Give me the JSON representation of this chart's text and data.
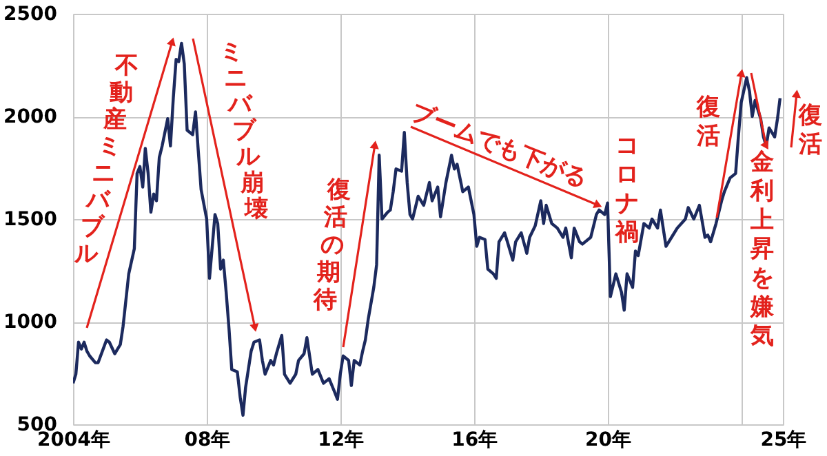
{
  "chart_data": {
    "type": "line",
    "color": "#1c2a5e",
    "grid": true,
    "xlim": [
      "2004-01",
      "2025-04"
    ],
    "xticks": [
      {
        "value": "2004",
        "label": "2004年"
      },
      {
        "value": "2008",
        "label": "08年"
      },
      {
        "value": "2012",
        "label": "12年"
      },
      {
        "value": "2016",
        "label": "16年"
      },
      {
        "value": "2020",
        "label": "20年"
      },
      {
        "value": "2024",
        "label": null
      },
      {
        "value": "2025-04",
        "label": "25年"
      }
    ],
    "ylim": [
      500,
      2500
    ],
    "yticks": [
      500,
      1000,
      1500,
      2000,
      2500
    ],
    "x": [
      "2004-01",
      "2004-02",
      "2004-03",
      "2004-04",
      "2004-05",
      "2004-06",
      "2004-07",
      "2004-09",
      "2004-10",
      "2005-01",
      "2005-02",
      "2005-04",
      "2005-06",
      "2005-07",
      "2005-09",
      "2005-11",
      "2005-12",
      "2006-01",
      "2006-02",
      "2006-03",
      "2006-04",
      "2006-05",
      "2006-06",
      "2006-07",
      "2006-08",
      "2006-09",
      "2006-11",
      "2006-12",
      "2007-01",
      "2007-02",
      "2007-03",
      "2007-04",
      "2007-05",
      "2007-06",
      "2007-08",
      "2007-09",
      "2007-10",
      "2007-11",
      "2008-01",
      "2008-02",
      "2008-04",
      "2008-05",
      "2008-06",
      "2008-07",
      "2008-08",
      "2008-09",
      "2008-10",
      "2008-12",
      "2009-01",
      "2009-02",
      "2009-03",
      "2009-05",
      "2009-06",
      "2009-08",
      "2009-09",
      "2009-10",
      "2009-12",
      "2010-01",
      "2010-02",
      "2010-04",
      "2010-05",
      "2010-07",
      "2010-09",
      "2010-10",
      "2010-12",
      "2011-01",
      "2011-03",
      "2011-05",
      "2011-07",
      "2011-09",
      "2011-11",
      "2011-12",
      "2012-01",
      "2012-02",
      "2012-04",
      "2012-05",
      "2012-06",
      "2012-08",
      "2012-09",
      "2012-10",
      "2012-11",
      "2013-01",
      "2013-02",
      "2013-03",
      "2013-04",
      "2013-06",
      "2013-07",
      "2013-08",
      "2013-09",
      "2013-11",
      "2013-12",
      "2014-01",
      "2014-02",
      "2014-03",
      "2014-05",
      "2014-07",
      "2014-09",
      "2014-10",
      "2014-12",
      "2015-01",
      "2015-03",
      "2015-05",
      "2015-06",
      "2015-07",
      "2015-09",
      "2015-11",
      "2016-01",
      "2016-02",
      "2016-03",
      "2016-05",
      "2016-06",
      "2016-08",
      "2016-09",
      "2016-10",
      "2016-12",
      "2017-01",
      "2017-03",
      "2017-04",
      "2017-06",
      "2017-08",
      "2017-09",
      "2017-11",
      "2018-01",
      "2018-02",
      "2018-03",
      "2018-05",
      "2018-07",
      "2018-09",
      "2018-10",
      "2018-12",
      "2019-01",
      "2019-03",
      "2019-04",
      "2019-07",
      "2019-09",
      "2019-10",
      "2019-12",
      "2020-01",
      "2020-02",
      "2020-04",
      "2020-06",
      "2020-07",
      "2020-08",
      "2020-10",
      "2020-11",
      "2020-12",
      "2021-02",
      "2021-04",
      "2021-05",
      "2021-07",
      "2021-08",
      "2021-10",
      "2021-12",
      "2022-02",
      "2022-05",
      "2022-06",
      "2022-08",
      "2022-10",
      "2022-12",
      "2023-01",
      "2023-02",
      "2023-04",
      "2023-06",
      "2023-07",
      "2023-09",
      "2023-11",
      "2023-12",
      "2024-01",
      "2024-03",
      "2024-04",
      "2024-05",
      "2024-06",
      "2024-08",
      "2024-09",
      "2024-10",
      "2024-11",
      "2025-01",
      "2025-02",
      "2025-03"
    ],
    "values": [
      700,
      745,
      900,
      867,
      900,
      856,
      833,
      800,
      800,
      911,
      900,
      844,
      889,
      978,
      1233,
      1356,
      1722,
      1756,
      1656,
      1844,
      1722,
      1533,
      1622,
      1589,
      1800,
      1856,
      1989,
      1856,
      2089,
      2278,
      2267,
      2356,
      2256,
      1933,
      1911,
      2022,
      1833,
      1644,
      1500,
      1211,
      1522,
      1478,
      1256,
      1300,
      1144,
      967,
      767,
      756,
      633,
      544,
      678,
      856,
      900,
      911,
      811,
      744,
      811,
      789,
      844,
      933,
      744,
      700,
      744,
      811,
      844,
      922,
      744,
      767,
      700,
      722,
      656,
      622,
      745,
      833,
      811,
      689,
      811,
      789,
      856,
      911,
      1011,
      1167,
      1278,
      1811,
      1500,
      1533,
      1544,
      1633,
      1744,
      1733,
      1922,
      1678,
      1522,
      1500,
      1611,
      1567,
      1678,
      1589,
      1656,
      1511,
      1678,
      1811,
      1744,
      1767,
      1633,
      1656,
      1522,
      1367,
      1411,
      1400,
      1256,
      1233,
      1211,
      1389,
      1433,
      1389,
      1300,
      1389,
      1433,
      1333,
      1411,
      1467,
      1589,
      1478,
      1567,
      1478,
      1456,
      1411,
      1456,
      1311,
      1456,
      1389,
      1378,
      1411,
      1522,
      1544,
      1522,
      1578,
      1122,
      1233,
      1144,
      1056,
      1233,
      1167,
      1344,
      1322,
      1478,
      1456,
      1500,
      1456,
      1544,
      1367,
      1411,
      1456,
      1500,
      1556,
      1500,
      1567,
      1411,
      1422,
      1389,
      1478,
      1589,
      1633,
      1700,
      1722,
      1900,
      2067,
      2189,
      2122,
      2000,
      2078,
      1989,
      1900,
      1856,
      1944,
      1900,
      1989,
      2089
    ],
    "annotations": [
      "不動産ミニバブル",
      "ミニバブル崩壊",
      "復活の期待",
      "ブームでも下がる",
      "コロナ禍",
      "復活",
      {
        "text": "金利上昇を嫌気",
        "x": "2024-10",
        "y": 1856
      },
      "復活"
    ]
  }
}
